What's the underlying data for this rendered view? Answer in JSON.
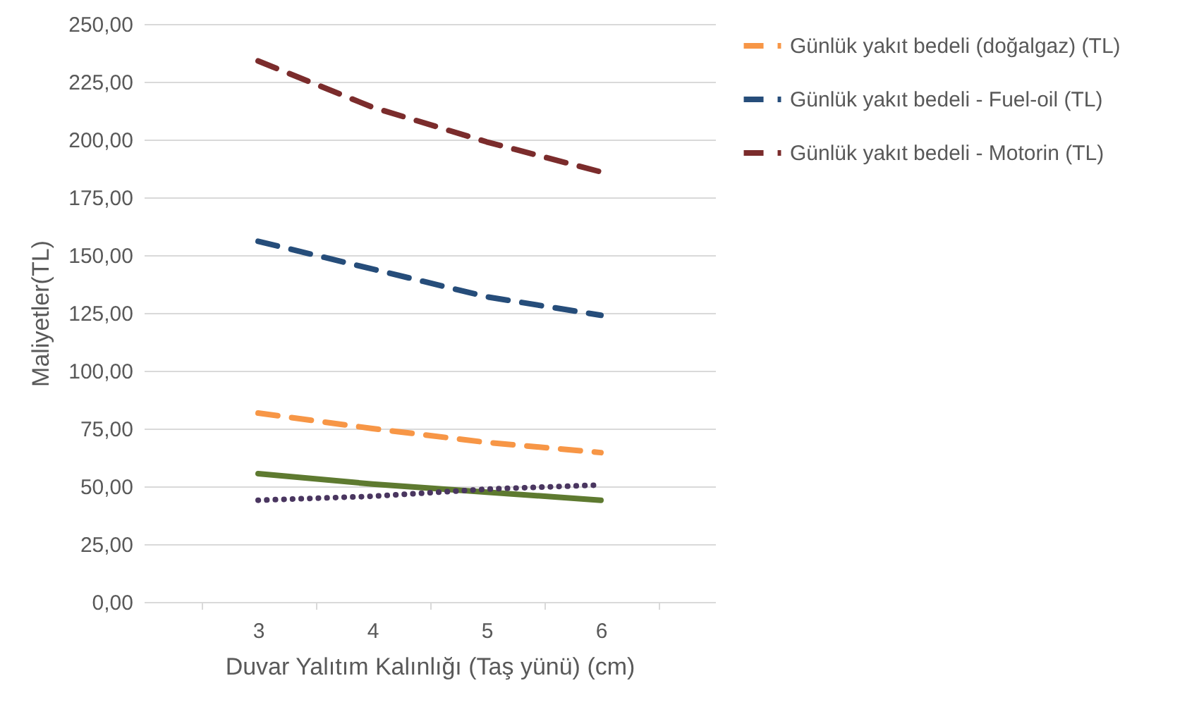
{
  "chart_data": {
    "type": "line",
    "xlabel": "Duvar Yalıtım Kalınlığı (Taş yünü) (cm)",
    "ylabel": "Maliyetler(TL)",
    "categories": [
      "3",
      "4",
      "5",
      "6"
    ],
    "series": [
      {
        "name": "Günlük yakıt bedeli (doğalgaz) (TL)",
        "color": "#f79646",
        "line_style": "dashed",
        "values": [
          81.7,
          75,
          69,
          64.6
        ]
      },
      {
        "name": "Günlük yakıt bedeli - Fuel-oil (TL)",
        "color": "#264d7a",
        "line_style": "dashed",
        "values": [
          156,
          144,
          132,
          124
        ]
      },
      {
        "name": "Günlük yakıt bedeli - Motorin (TL)",
        "color": "#7b2c2c",
        "line_style": "dashed",
        "values": [
          234,
          214,
          199,
          186
        ]
      },
      {
        "color": "#5e7a30",
        "line_style": "solid",
        "values": [
          55.5,
          51,
          47.5,
          44
        ]
      },
      {
        "color": "#4a3660",
        "line_style": "dotted",
        "values": [
          44,
          45.7,
          48.8,
          50.6
        ]
      }
    ],
    "ylim": [
      0,
      250
    ],
    "yticks": [
      {
        "value": 0,
        "label": "0,00"
      },
      {
        "value": 25,
        "label": "25,00"
      },
      {
        "value": 50,
        "label": "50,00"
      },
      {
        "value": 75,
        "label": "75,00"
      },
      {
        "value": 100,
        "label": "100,00"
      },
      {
        "value": 125,
        "label": "125,00"
      },
      {
        "value": 150,
        "label": "150,00"
      },
      {
        "value": 175,
        "label": "175,00"
      },
      {
        "value": 200,
        "label": "200,00"
      },
      {
        "value": 225,
        "label": "225,00"
      },
      {
        "value": 250,
        "label": "250,00"
      }
    ],
    "grid": "y",
    "legend": "right"
  }
}
